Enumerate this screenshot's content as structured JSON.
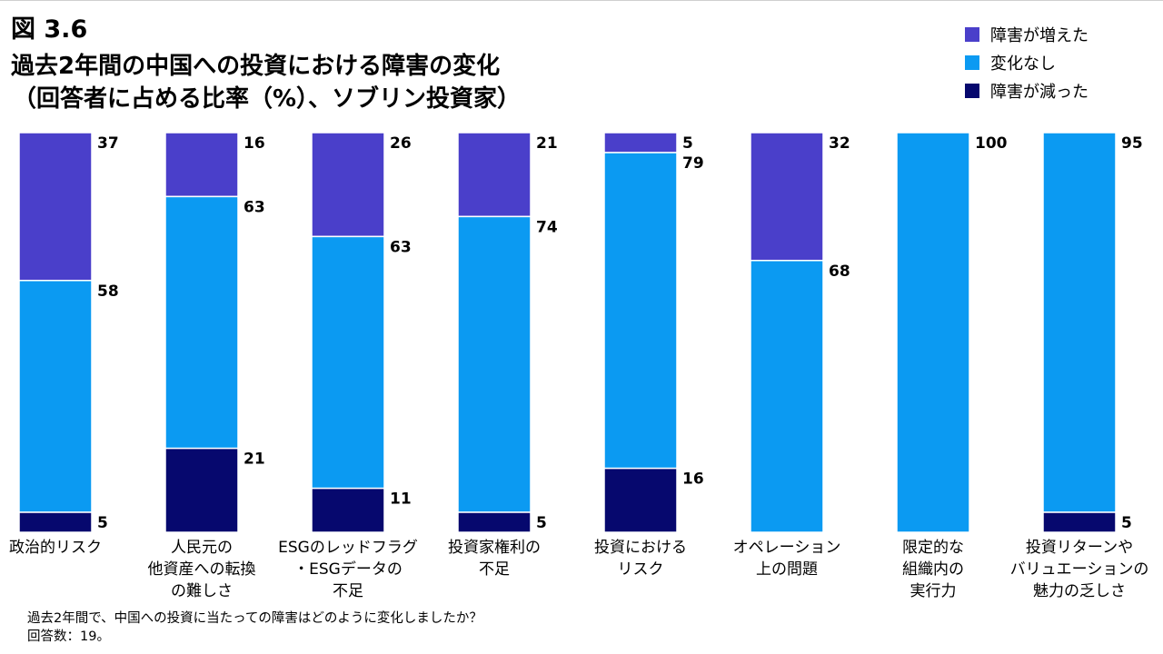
{
  "figure_label": "図 3.6",
  "title_lines": [
    "過去2年間の中国への投資における障害の変化",
    "（回答者に占める比率（%）、ソブリン投資家）"
  ],
  "legend": [
    {
      "label": "障害が増えた",
      "color": "#4a3fca"
    },
    {
      "label": "変化なし",
      "color": "#0b9af2"
    },
    {
      "label": "障害が減った",
      "color": "#06086e"
    }
  ],
  "footnotes": [
    "過去2年間で、中国への投資に当たっての障害はどのように変化しましたか？",
    "回答数：19。"
  ],
  "chart_data": {
    "type": "bar",
    "stacked": true,
    "title": "過去2年間の中国への投資における障害の変化（回答者に占める比率（%）、ソブリン投資家）",
    "xlabel": "",
    "ylabel": "",
    "ylim": [
      0,
      100
    ],
    "grid": false,
    "legend_position": "top-right",
    "categories": [
      [
        "政治的リスク"
      ],
      [
        "人民元の",
        "他資産への転換",
        "の難しさ"
      ],
      [
        "ESGのレッドフラグ",
        "・ESGデータの",
        "不足"
      ],
      [
        "投資家権利の",
        "不足"
      ],
      [
        "投資における",
        "リスク"
      ],
      [
        "オペレーション",
        "上の問題"
      ],
      [
        "限定的な",
        "組織内の",
        "実行力"
      ],
      [
        "投資リターンや",
        "バリュエーションの",
        "魅力の乏しさ"
      ]
    ],
    "series": [
      {
        "name": "障害が増えた",
        "color": "#4a3fca",
        "values": [
          37,
          16,
          26,
          21,
          5,
          32,
          0,
          0
        ]
      },
      {
        "name": "変化なし",
        "color": "#0b9af2",
        "values": [
          58,
          63,
          63,
          74,
          79,
          68,
          100,
          95
        ]
      },
      {
        "name": "障害が減った",
        "color": "#06086e",
        "values": [
          5,
          21,
          11,
          5,
          16,
          0,
          0,
          5
        ]
      }
    ]
  }
}
